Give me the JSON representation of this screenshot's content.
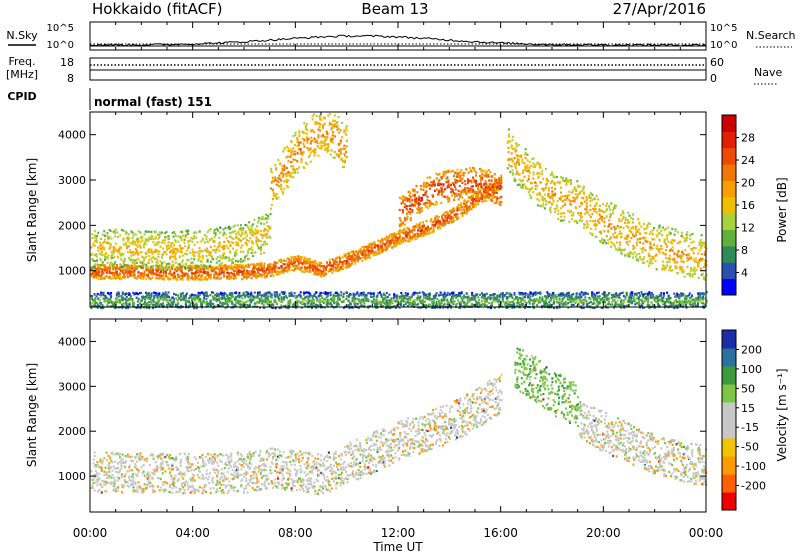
{
  "header": {
    "station": "Hokkaido (fitACF)",
    "beam": "Beam 13",
    "date": "27/Apr/2016"
  },
  "strips": {
    "nsky_label": "N.Sky",
    "nsearch_label": "N.Search",
    "log_ticks": [
      "10^5",
      "10^0"
    ],
    "freq_label": "Freq.",
    "freq_unit": "[MHz]",
    "freq_ticks": [
      "18",
      "8"
    ],
    "nave_label": "Nave",
    "nave_ticks": [
      "60",
      "0"
    ],
    "cpid_label": "CPID",
    "cpid_value": "normal (fast) 151"
  },
  "colors": {
    "power": [
      "#0000ff",
      "#2a50b4",
      "#2e8b57",
      "#5fb03c",
      "#a8d13a",
      "#f0c000",
      "#f5a000",
      "#f07800",
      "#ee4a00",
      "#e02000",
      "#cc0000"
    ],
    "velocity": [
      "#ee0000",
      "#ff6000",
      "#ff9a00",
      "#f2c400",
      "#c8c8c8",
      "#c8c8c8",
      "#7cc846",
      "#3c9a3c",
      "#2a70a0",
      "#1c2ca8"
    ],
    "ground_scatter": "#c8c8c8"
  },
  "chart_data": [
    {
      "type": "heatmap",
      "panel": "power",
      "ylabel": "Slant Range [km]",
      "x_unit": "hours UT",
      "xlim": [
        0,
        24
      ],
      "ylim": [
        200,
        4500
      ],
      "yticks": [
        1000,
        2000,
        3000,
        4000
      ],
      "colorbar": {
        "label": "Power [dB]",
        "ticks": [
          4,
          8,
          12,
          16,
          20,
          24,
          28
        ],
        "range": [
          0,
          32
        ]
      },
      "scatter_bands": [
        {
          "name": "low-range-band",
          "x": [
            0,
            2,
            4,
            6,
            7,
            8,
            9,
            10,
            11,
            12,
            13,
            14,
            15,
            16
          ],
          "range_km": [
            1000,
            1000,
            980,
            1000,
            1050,
            1200,
            1050,
            1250,
            1500,
            1750,
            1950,
            2200,
            2600,
            3000
          ],
          "thickness_km": 160,
          "power_db": 26
        },
        {
          "name": "morning-f-region",
          "x": [
            0,
            1,
            2,
            3,
            4,
            5,
            6,
            7
          ],
          "range_km": [
            1500,
            1520,
            1480,
            1460,
            1500,
            1560,
            1650,
            1900
          ],
          "thickness_km": 420,
          "power_db": 18
        },
        {
          "name": "upper-band",
          "x": [
            12,
            12.5,
            13,
            13.5,
            14,
            14.5,
            15,
            15.5,
            16
          ],
          "range_km": [
            2300,
            2500,
            2700,
            2850,
            2900,
            2950,
            2950,
            2900,
            2800
          ],
          "thickness_km": 350,
          "power_db": 27
        },
        {
          "name": "evening-band",
          "x": [
            16.2,
            16.8,
            17.5,
            18.3,
            19,
            20,
            21,
            22,
            23,
            24
          ],
          "range_km": [
            3700,
            3300,
            2900,
            2600,
            2500,
            2100,
            1800,
            1550,
            1400,
            1300
          ],
          "thickness_km": 500,
          "power_db": 20
        },
        {
          "name": "late-spray",
          "x": [
            7,
            7.5,
            8,
            8.5,
            9,
            9.5,
            10
          ],
          "range_km": [
            2800,
            3200,
            3600,
            3900,
            4100,
            4000,
            3700
          ],
          "thickness_km": 500,
          "power_db": 22
        },
        {
          "name": "near-range",
          "x": [
            0,
            4,
            8,
            12,
            16,
            20,
            24
          ],
          "range_km": [
            350,
            350,
            350,
            350,
            350,
            350,
            350
          ],
          "thickness_km": 200,
          "power_db": 10
        }
      ]
    },
    {
      "type": "heatmap",
      "panel": "velocity",
      "ylabel": "Slant Range [km]",
      "xlabel": "Time UT",
      "xlim": [
        0,
        24
      ],
      "ylim": [
        200,
        4500
      ],
      "yticks": [
        1000,
        2000,
        3000,
        4000
      ],
      "xtick_labels": [
        "00:00",
        "04:00",
        "08:00",
        "12:00",
        "16:00",
        "20:00",
        "00:00"
      ],
      "colorbar": {
        "label": "Velocity [m s⁻¹]",
        "ticks": [
          200,
          100,
          50,
          15,
          -15,
          -50,
          -100,
          -200
        ]
      },
      "scatter_bands": [
        {
          "name": "ground-scatter-band",
          "x": [
            0,
            2,
            4,
            6,
            7,
            8,
            9,
            10,
            11,
            12,
            13,
            14,
            15,
            16
          ],
          "range_km": [
            1100,
            1100,
            1080,
            1100,
            1200,
            1150,
            1050,
            1300,
            1550,
            1800,
            2000,
            2200,
            2500,
            2900
          ],
          "thickness_km": 450,
          "velocity": 0
        },
        {
          "name": "evening-ionospheric",
          "x": [
            16.5,
            17,
            17.5,
            18,
            18.5,
            19
          ],
          "range_km": [
            3500,
            3300,
            3100,
            2900,
            2700,
            2600
          ],
          "thickness_km": 500,
          "velocity": 40
        },
        {
          "name": "evening-ground",
          "x": [
            19,
            20,
            21,
            22,
            23,
            24
          ],
          "range_km": [
            2300,
            2000,
            1750,
            1500,
            1350,
            1250
          ],
          "thickness_km": 450,
          "velocity": 0
        }
      ]
    }
  ]
}
